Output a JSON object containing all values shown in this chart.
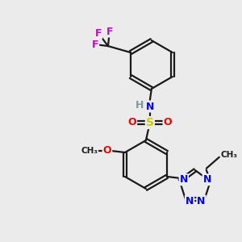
{
  "bg_color": "#ebebeb",
  "bond_color": "#1a1a1a",
  "bond_width": 1.6,
  "atom_colors": {
    "C": "#1a1a1a",
    "H": "#7a9a9a",
    "N": "#0000ee",
    "O": "#ee0000",
    "S": "#cccc00",
    "F": "#cc00cc"
  },
  "font_size": 9
}
